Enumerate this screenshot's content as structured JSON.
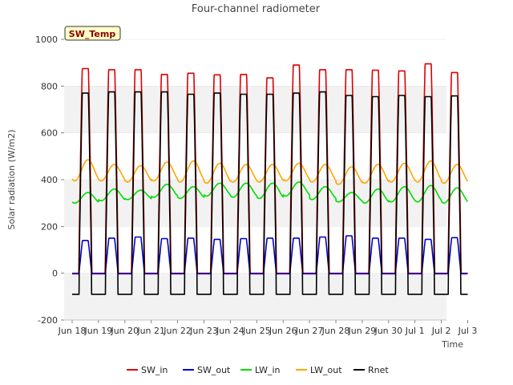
{
  "chart_data": {
    "type": "line",
    "title": "Four-channel radiometer",
    "xlabel": "Time",
    "ylabel": "Solar radiation (W/m2)",
    "ylim": [
      -200,
      1000
    ],
    "yticks": [
      -200,
      0,
      200,
      400,
      600,
      800,
      1000
    ],
    "xlim": [
      "2023-06-18",
      "2023-07-03"
    ],
    "xticks": [
      "Jun 18",
      "Jun 19",
      "Jun 20",
      "Jun 21",
      "Jun 22",
      "Jun 23",
      "Jun 24",
      "Jun 25",
      "Jun 26",
      "Jun 27",
      "Jun 28",
      "Jun 29",
      "Jun 30",
      "Jul 1",
      "Jul 2",
      "Jul 3"
    ],
    "grid": "horizontal shaded bands",
    "legend_position": "bottom",
    "annotation": "SW_Temp",
    "days": [
      "Jun 18",
      "Jun 19",
      "Jun 20",
      "Jun 21",
      "Jun 22",
      "Jun 23",
      "Jun 24",
      "Jun 25",
      "Jun 26",
      "Jun 27",
      "Jun 28",
      "Jun 29",
      "Jun 30",
      "Jul 1",
      "Jul 2"
    ],
    "series": [
      {
        "name": "SW_in",
        "color": "#dd0000",
        "night": 0,
        "daily_peak": [
          875,
          870,
          870,
          850,
          855,
          848,
          850,
          835,
          890,
          870,
          870,
          868,
          865,
          895,
          858
        ]
      },
      {
        "name": "SW_out",
        "color": "#0000cc",
        "night": -2,
        "daily_peak": [
          140,
          150,
          155,
          148,
          150,
          145,
          148,
          150,
          150,
          155,
          160,
          150,
          150,
          145,
          152
        ]
      },
      {
        "name": "LW_in",
        "color": "#00dd00",
        "daily_min": [
          300,
          310,
          315,
          325,
          320,
          330,
          325,
          320,
          330,
          315,
          305,
          300,
          305,
          305,
          300
        ],
        "daily_max": [
          345,
          360,
          355,
          380,
          370,
          385,
          385,
          385,
          390,
          370,
          345,
          360,
          370,
          375,
          365
        ]
      },
      {
        "name": "LW_out",
        "color": "#ffa500",
        "daily_min": [
          395,
          395,
          390,
          395,
          390,
          385,
          390,
          390,
          395,
          390,
          380,
          385,
          390,
          390,
          385
        ],
        "daily_max": [
          485,
          465,
          460,
          475,
          480,
          470,
          465,
          465,
          470,
          465,
          455,
          465,
          470,
          480,
          465
        ]
      },
      {
        "name": "Rnet",
        "color": "#000000",
        "night": -90,
        "daily_peak": [
          770,
          775,
          775,
          775,
          765,
          770,
          765,
          765,
          770,
          775,
          760,
          755,
          760,
          755,
          758
        ]
      }
    ]
  }
}
